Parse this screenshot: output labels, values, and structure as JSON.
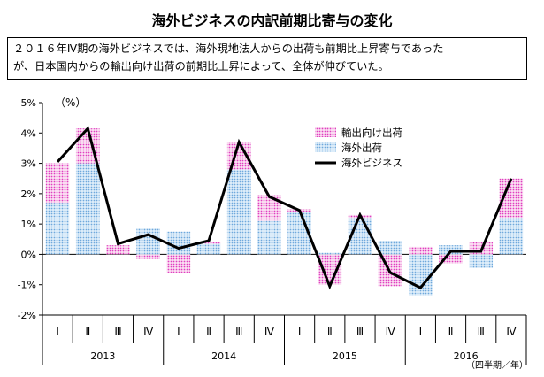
{
  "title": "海外ビジネスの内訳前期比寄与の変化",
  "summary": {
    "line1": "２０１６年Ⅳ期の海外ビジネスでは、海外現地法人からの出荷も前期比上昇寄与であった",
    "line2": "が、日本国内からの輸出向け出荷の前期比上昇によって、全体が伸びていた。"
  },
  "chart_data": {
    "type": "bar",
    "unit_label": "（%）",
    "x_axis_note": "（四半期／年）",
    "ylim": [
      -2,
      5
    ],
    "yticks": [
      "-2%",
      "-1%",
      "0%",
      "1%",
      "2%",
      "3%",
      "4%",
      "5%"
    ],
    "quarters": [
      "Ⅰ",
      "Ⅱ",
      "Ⅲ",
      "Ⅳ",
      "Ⅰ",
      "Ⅱ",
      "Ⅲ",
      "Ⅳ",
      "Ⅰ",
      "Ⅱ",
      "Ⅲ",
      "Ⅳ",
      "Ⅰ",
      "Ⅱ",
      "Ⅲ",
      "Ⅳ"
    ],
    "years": [
      "2013",
      "2014",
      "2015",
      "2016"
    ],
    "legend_position": "top-right",
    "series": [
      {
        "name": "輸出向け出荷",
        "kind": "stacked-bar",
        "pattern": "pink-dots",
        "color": "#e040c0",
        "values": [
          1.3,
          1.15,
          0.3,
          -0.15,
          -0.6,
          0.05,
          0.9,
          0.85,
          0.1,
          -1.0,
          0.1,
          -1.05,
          0.25,
          -0.3,
          0.4,
          1.3
        ]
      },
      {
        "name": "海外出荷",
        "kind": "stacked-bar",
        "pattern": "blue-dots",
        "color": "#6fa8dc",
        "values": [
          1.7,
          3.0,
          0.0,
          0.85,
          0.75,
          0.35,
          2.8,
          1.1,
          1.4,
          0.05,
          1.2,
          0.45,
          -1.35,
          0.3,
          -0.45,
          1.2
        ]
      },
      {
        "name": "海外ビジネス",
        "kind": "line",
        "color": "#000000",
        "values": [
          3.05,
          4.15,
          0.35,
          0.65,
          0.2,
          0.45,
          3.7,
          1.9,
          1.45,
          -1.05,
          1.3,
          -0.6,
          -1.1,
          0.1,
          0.1,
          2.5
        ]
      }
    ]
  }
}
